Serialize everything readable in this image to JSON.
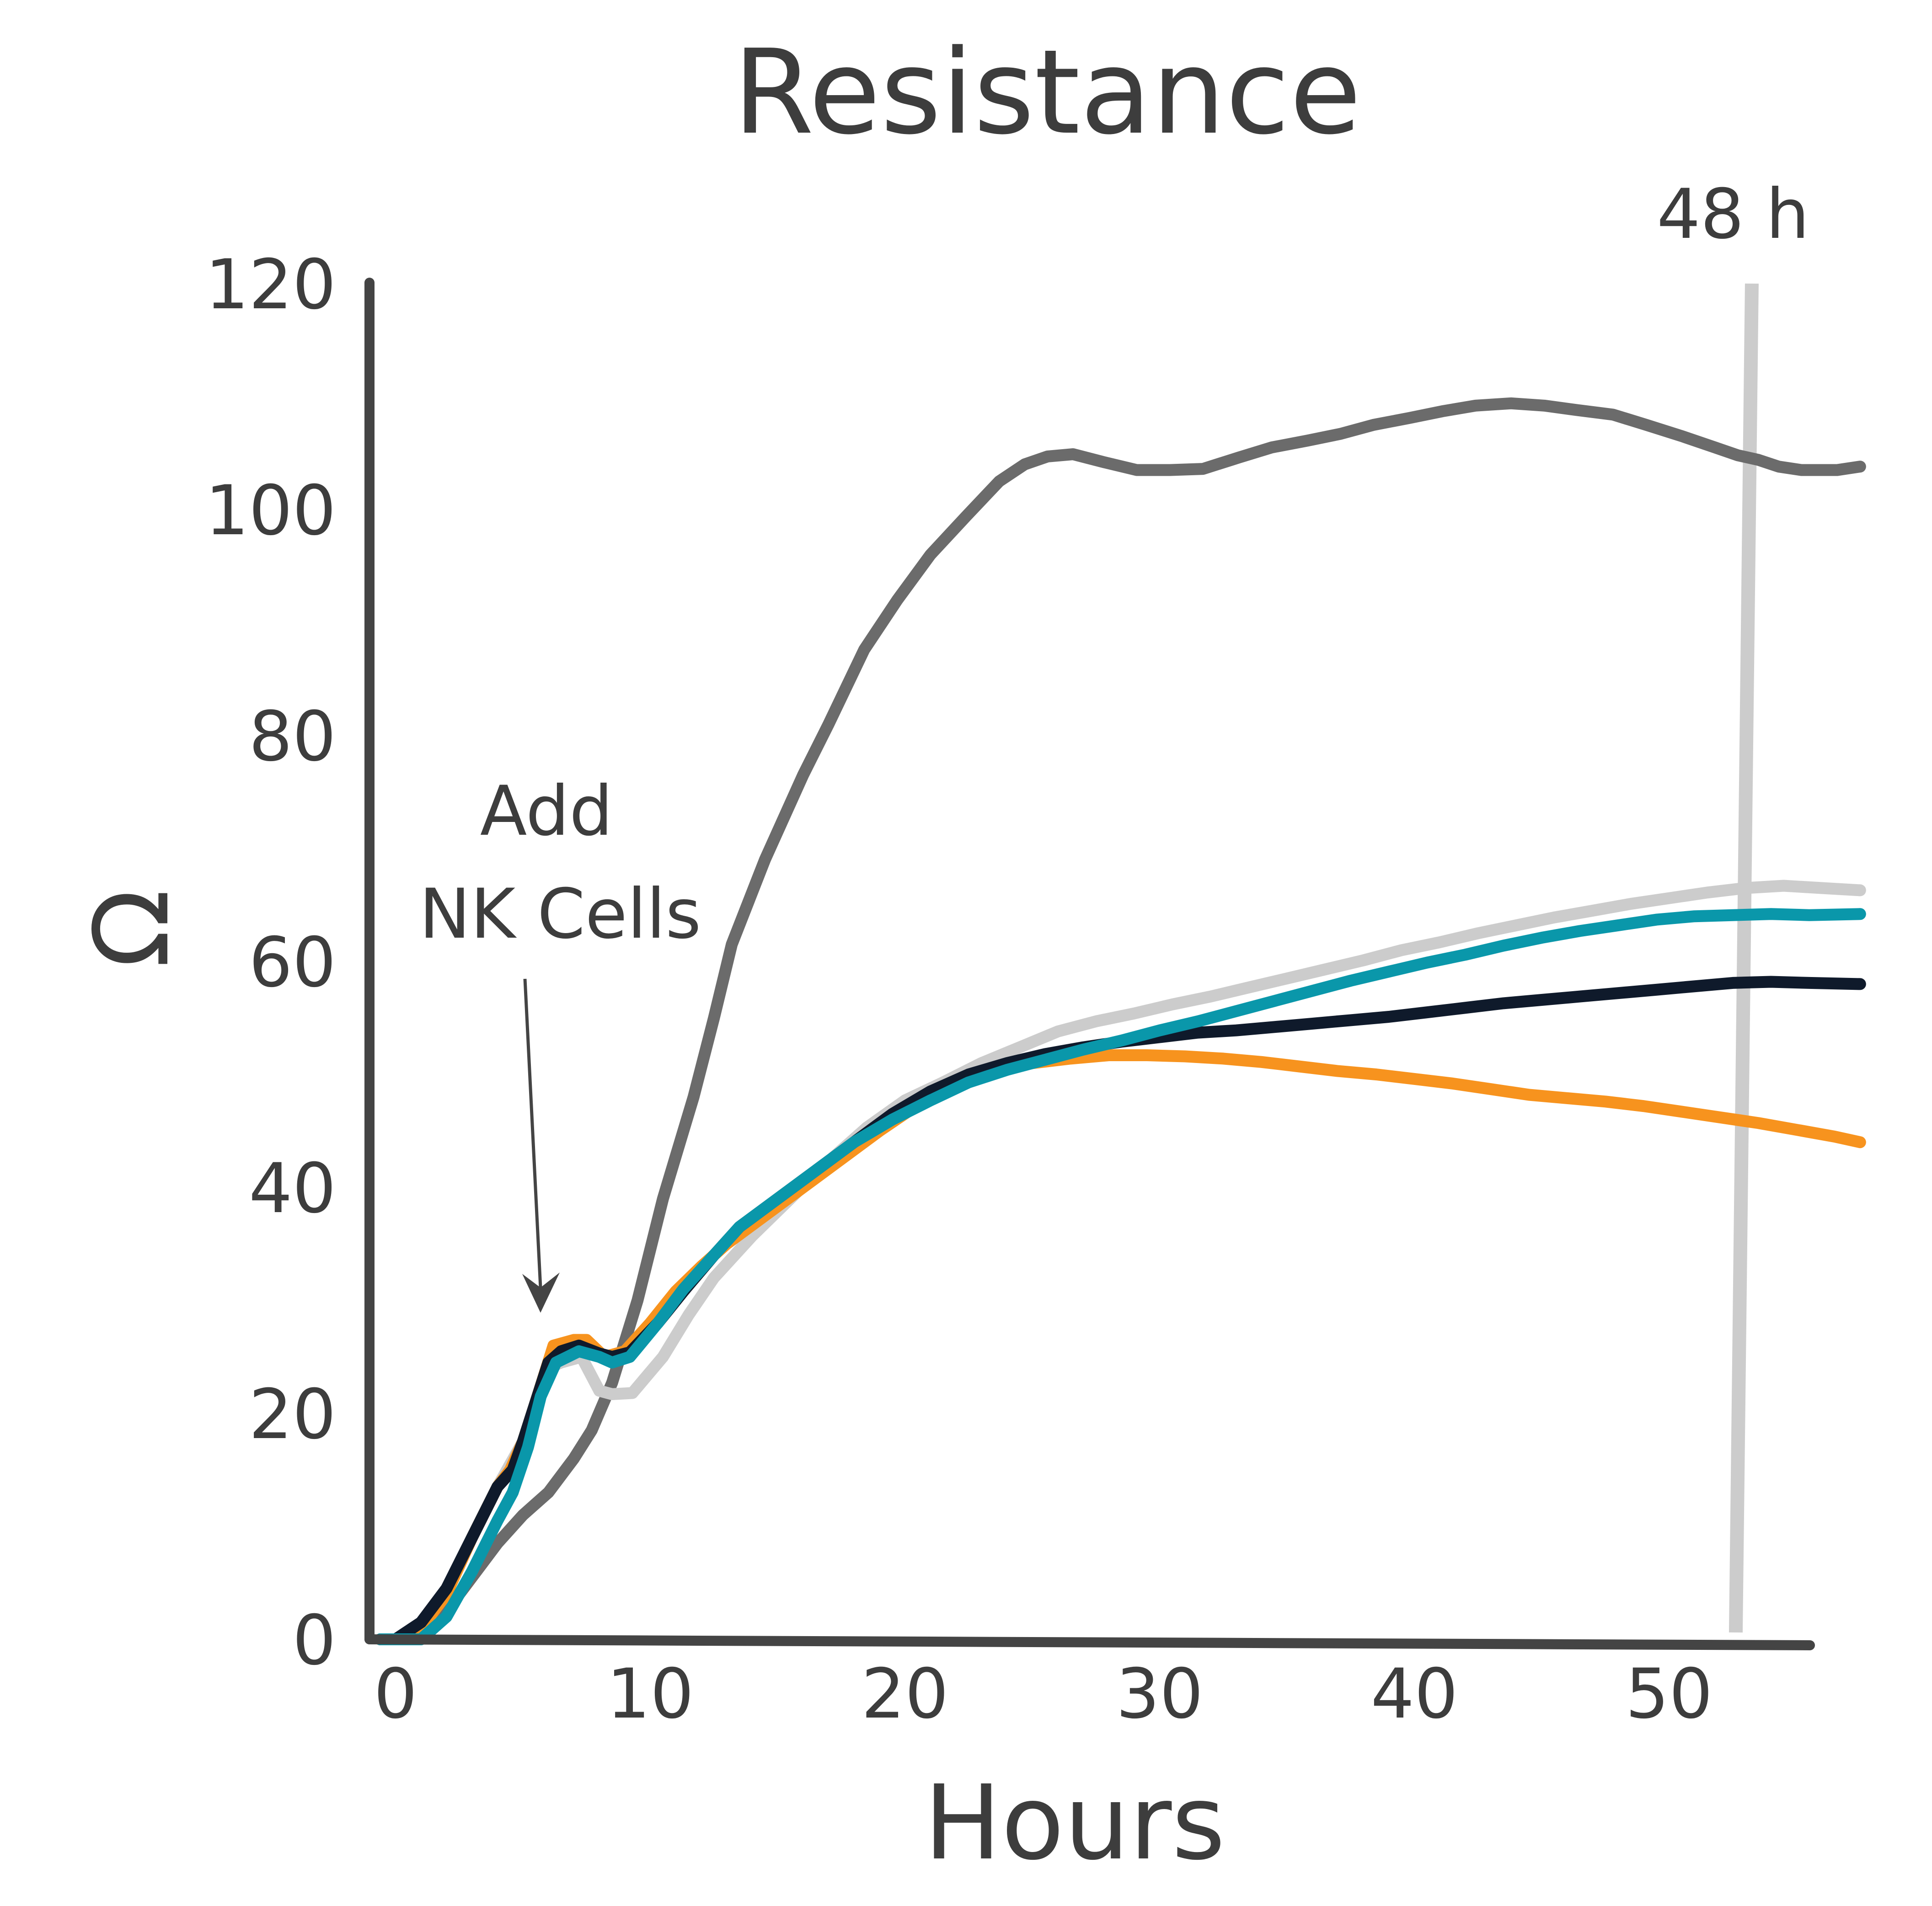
{
  "chart_data": {
    "type": "line",
    "title": "Resistance",
    "xlabel": "Hours",
    "ylabel": "Ω",
    "xlim": [
      -1,
      55
    ],
    "ylim": [
      0,
      120
    ],
    "xticks": [
      0,
      10,
      20,
      30,
      40,
      50
    ],
    "yticks": [
      0,
      20,
      40,
      60,
      80,
      100,
      120
    ],
    "grid": false,
    "legend": "none",
    "annotations": {
      "add_nk_line1": "Add",
      "add_nk_line2": "NK Cells",
      "add_nk_at": {
        "x": 5.7,
        "y": 29
      },
      "marker_label": "48 h",
      "marker_x": 52.8
    },
    "series": [
      {
        "color": "#6b6b6b",
        "x": [
          -0.6,
          0,
          1,
          2,
          3,
          4,
          5,
          5.5,
          6,
          7,
          7.7,
          8.5,
          9.5,
          10.5,
          11.7,
          12.5,
          13.2,
          14.5,
          16,
          17,
          18.4,
          19.7,
          21,
          22.4,
          23.7,
          24.7,
          25.6,
          26.6,
          27.8,
          29.1,
          30.4,
          31.7,
          33.1,
          34.4,
          35.8,
          37.1,
          38.4,
          39.8,
          41.1,
          42.4,
          43.8,
          45.1,
          46.4,
          47.8,
          49.1,
          50.5,
          51.8,
          52.7,
          53.5,
          54.3,
          55.2,
          56.6,
          57.5
        ],
        "y": [
          0,
          0,
          0.8,
          2.5,
          5.5,
          8.5,
          11,
          12,
          13,
          16,
          18.5,
          22.7,
          30,
          39,
          48,
          55,
          61.5,
          69,
          76.5,
          81,
          87.6,
          92,
          96,
          99.4,
          102.5,
          104,
          104.7,
          104.9,
          104.2,
          103.5,
          103.5,
          103.6,
          104.6,
          105.5,
          106.1,
          106.7,
          107.5,
          108.1,
          108.7,
          109.2,
          109.4,
          109.2,
          108.8,
          108.4,
          107.5,
          106.5,
          105.5,
          104.8,
          104.4,
          103.8,
          103.5,
          103.5,
          103.8
        ]
      },
      {
        "color": "#cccccc",
        "x": [
          -0.6,
          0,
          1,
          2,
          3,
          4,
          5,
          5.5,
          6,
          6.5,
          7.3,
          8,
          8.5,
          9.3,
          10.5,
          11.5,
          12.5,
          14,
          15.5,
          17,
          18.5,
          20,
          21.5,
          23,
          24.5,
          26,
          27.5,
          29,
          30.5,
          32,
          33.5,
          35,
          36.5,
          38,
          39.5,
          41,
          42.5,
          44,
          45.5,
          47,
          48.5,
          50,
          51.5,
          53,
          54.5,
          56,
          57.5
        ],
        "y": [
          0,
          0,
          1,
          4,
          9,
          13.5,
          17.5,
          21,
          24,
          24.5,
          25,
          22,
          21.7,
          21.8,
          25,
          28.7,
          32,
          35.7,
          39,
          42.3,
          45.3,
          47.7,
          49.3,
          51,
          52.4,
          53.8,
          54.7,
          55.4,
          56.2,
          56.9,
          57.7,
          58.5,
          59.3,
          60.1,
          61,
          61.7,
          62.5,
          63.2,
          63.9,
          64.5,
          65.1,
          65.6,
          66.1,
          66.5,
          66.7,
          66.5,
          66.3
        ]
      },
      {
        "color": "#f7931e",
        "x": [
          -0.6,
          0,
          1,
          2,
          3,
          4,
          4.5,
          5,
          5.5,
          6.2,
          7,
          7.5,
          8.2,
          9,
          10,
          11,
          12,
          13,
          14.5,
          16,
          17.5,
          19,
          20.5,
          22,
          23.5,
          25,
          26.5,
          28,
          29.5,
          31,
          32.5,
          34,
          35.5,
          37,
          38.5,
          40,
          41.5,
          43,
          44.5,
          46,
          47.5,
          49,
          50.5,
          52,
          53.5,
          55,
          56.5,
          57.5
        ],
        "y": [
          0,
          0,
          1,
          4,
          9,
          13.5,
          15,
          17.5,
          21,
          26,
          26.5,
          26.5,
          25,
          25.5,
          28,
          30.8,
          33,
          35,
          37.5,
          40,
          42.5,
          45,
          47.3,
          49,
          50.3,
          51,
          51.4,
          51.7,
          51.7,
          51.6,
          51.4,
          51.1,
          50.7,
          50.3,
          50,
          49.6,
          49.2,
          48.7,
          48.2,
          47.9,
          47.6,
          47.2,
          46.7,
          46.2,
          45.7,
          45.1,
          44.5,
          44
        ]
      },
      {
        "color": "#0f1a2b",
        "x": [
          -0.6,
          0,
          1,
          2,
          3,
          4,
          4.6,
          5,
          5.5,
          6,
          6.5,
          7.2,
          8,
          8.5,
          9.2,
          10.3,
          11.3,
          12.5,
          13.5,
          15,
          16.5,
          18,
          19.5,
          21,
          22.5,
          24,
          25.5,
          27,
          28.5,
          30,
          31.5,
          33,
          34.5,
          36,
          37.5,
          39,
          40.5,
          42,
          43.5,
          45,
          46.5,
          48,
          49.5,
          51,
          52.5,
          54,
          55.5,
          57.5
        ],
        "y": [
          0,
          0,
          1.5,
          4.5,
          9,
          13.5,
          15,
          17.5,
          21,
          24.5,
          25.5,
          26,
          25.3,
          25,
          25.4,
          28,
          30.8,
          34,
          36.5,
          39,
          41.5,
          44,
          46.5,
          48.5,
          50,
          51,
          51.8,
          52.4,
          52.9,
          53.3,
          53.7,
          53.9,
          54.2,
          54.5,
          54.8,
          55.1,
          55.5,
          55.9,
          56.3,
          56.6,
          56.9,
          57.2,
          57.5,
          57.8,
          58.1,
          58.2,
          58.1,
          58
        ]
      },
      {
        "color": "#0a97aa",
        "x": [
          -0.6,
          0,
          1,
          2,
          3,
          4,
          4.6,
          5.2,
          5.7,
          6.3,
          7.2,
          8,
          8.5,
          9.2,
          10.3,
          11.3,
          12.5,
          13.5,
          15,
          16.5,
          18,
          19.5,
          21,
          22.5,
          24,
          25.5,
          27,
          28.5,
          30,
          31.5,
          33,
          34.5,
          36,
          37.5,
          39,
          40.5,
          42,
          43.5,
          45,
          46.5,
          48,
          49.5,
          51,
          52.5,
          54,
          55.5,
          57.5
        ],
        "y": [
          0,
          0,
          0,
          2,
          6,
          10.5,
          13,
          17,
          21.5,
          24.5,
          25.5,
          25,
          24.5,
          25,
          28,
          31,
          34,
          36.5,
          39,
          41.5,
          44,
          46,
          47.7,
          49.3,
          50.4,
          51.3,
          52.2,
          53,
          53.9,
          54.7,
          55.6,
          56.5,
          57.4,
          58.3,
          59.1,
          59.9,
          60.6,
          61.4,
          62.1,
          62.7,
          63.2,
          63.7,
          64,
          64.1,
          64.2,
          64.1,
          64.2
        ]
      }
    ]
  }
}
